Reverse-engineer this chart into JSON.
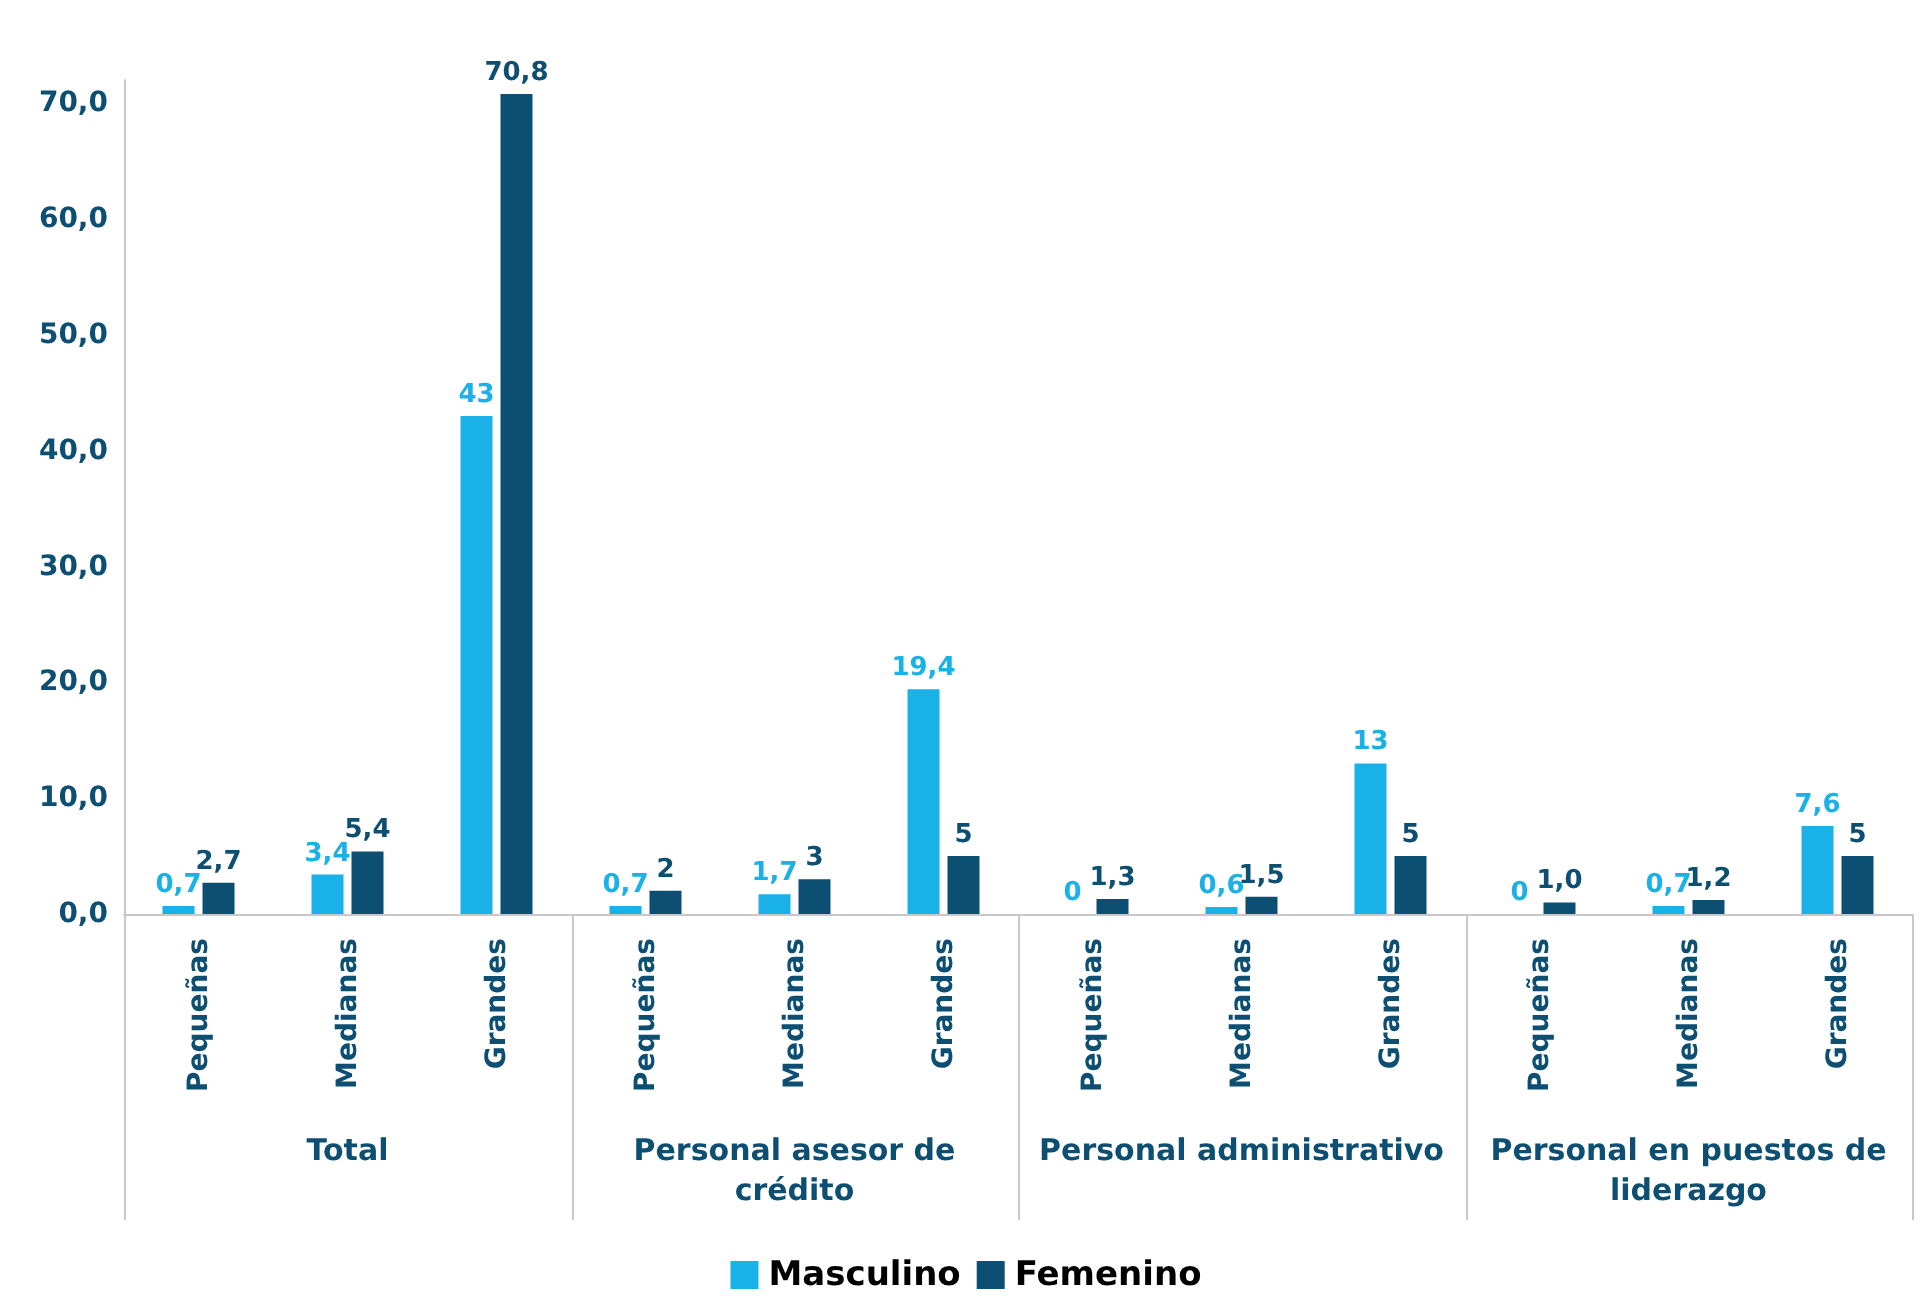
{
  "chart_data": {
    "type": "bar",
    "categories": [
      "Pequeñas",
      "Medianas",
      "Grandes",
      "Pequeñas",
      "Medianas",
      "Grandes",
      "Pequeñas",
      "Medianas",
      "Grandes",
      "Pequeñas",
      "Medianas",
      "Grandes"
    ],
    "annotations": [
      "Total",
      "Personal asesor de crédito",
      "Personal administrativo",
      "Personal en puestos de liderazgo"
    ],
    "series": [
      {
        "name": "Masculino",
        "color": "#1ab0e8",
        "values": [
          0.7,
          3.4,
          43,
          0.7,
          1.7,
          19.4,
          0,
          0.6,
          13,
          0,
          0.7,
          7.6
        ],
        "value_labels": [
          "0,7",
          "3,4",
          "43",
          "0,7",
          "1,7",
          "19,4",
          "0",
          "0,6",
          "13",
          "0",
          "0,7",
          "7,6"
        ]
      },
      {
        "name": "Femenino",
        "color": "#0d4f73",
        "values": [
          2.7,
          5.4,
          70.8,
          2,
          3,
          5,
          1.3,
          1.5,
          5,
          1.0,
          1.2,
          5
        ],
        "value_labels": [
          "2,7",
          "5,4",
          "70,8",
          "2",
          "3",
          "5",
          "1,3",
          "1,5",
          "5",
          "1,0",
          "1,2",
          "5"
        ]
      }
    ],
    "ylim": [
      0,
      72
    ],
    "yticks": [
      {
        "value": 0,
        "label": "0,0"
      },
      {
        "value": 10,
        "label": "10,0"
      },
      {
        "value": 20,
        "label": "20,0"
      },
      {
        "value": 30,
        "label": "30,0"
      },
      {
        "value": 40,
        "label": "40,0"
      },
      {
        "value": 50,
        "label": "50,0"
      },
      {
        "value": 60,
        "label": "60,0"
      },
      {
        "value": 70,
        "label": "70,0"
      }
    ],
    "grid": false,
    "legend": "bottom"
  }
}
